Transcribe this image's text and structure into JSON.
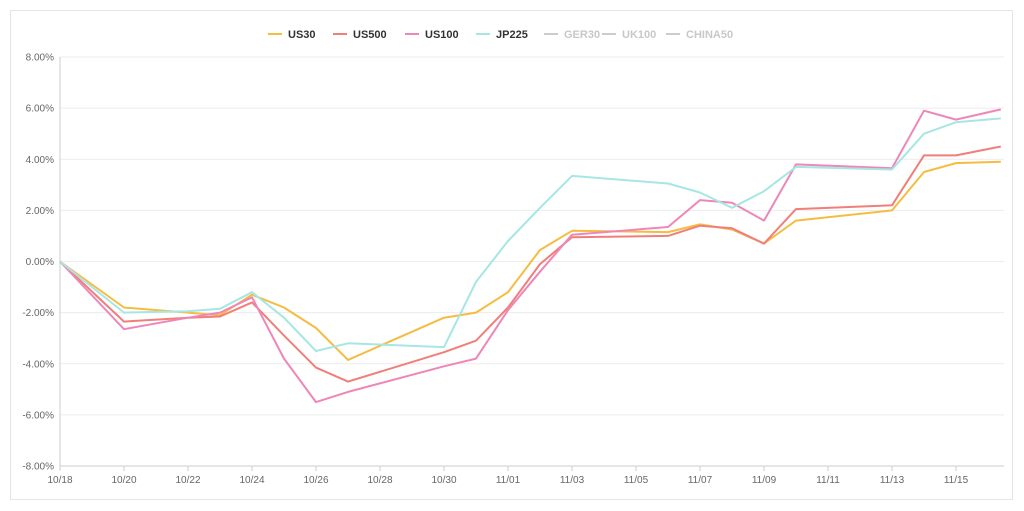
{
  "chart_data": {
    "type": "line",
    "title": "",
    "xlabel": "",
    "ylabel": "",
    "ylim": [
      -8,
      8
    ],
    "y_tick_labels": [
      "8.00%",
      "6.00%",
      "4.00%",
      "2.00%",
      "0.00%",
      "-2.00%",
      "-4.00%",
      "-6.00%",
      "-8.00%"
    ],
    "y_tick_values": [
      8,
      6,
      4,
      2,
      0,
      -2,
      -4,
      -6,
      -8
    ],
    "x_tick_labels": [
      "10/18",
      "10/20",
      "10/22",
      "10/24",
      "10/26",
      "10/28",
      "10/30",
      "11/01",
      "11/03",
      "11/05",
      "11/07",
      "11/09",
      "11/11",
      "11/13",
      "11/15"
    ],
    "x_tick_days": [
      0,
      2,
      4,
      6,
      8,
      10,
      12,
      14,
      16,
      18,
      20,
      22,
      24,
      26,
      28
    ],
    "x_range_days": [
      0,
      29.5
    ],
    "grid": "horizontal",
    "legend_position": "top-center",
    "series": [
      {
        "name": "US30",
        "color": "#f5bc42",
        "visible": true,
        "x": [
          0,
          2,
          4,
          5,
          6,
          7,
          8,
          9,
          12,
          13,
          14,
          15,
          16,
          19,
          20,
          21,
          22,
          23,
          26,
          27,
          28,
          29.4
        ],
        "values": [
          0,
          -1.8,
          -2.0,
          -2.1,
          -1.3,
          -1.8,
          -2.6,
          -3.85,
          -2.2,
          -2.0,
          -1.2,
          0.45,
          1.2,
          1.15,
          1.45,
          1.25,
          0.7,
          1.6,
          2.0,
          3.5,
          3.85,
          3.9
        ]
      },
      {
        "name": "US500",
        "color": "#f07f7a",
        "visible": true,
        "x": [
          0,
          2,
          4,
          5,
          6,
          7,
          8,
          9,
          12,
          13,
          14,
          15,
          16,
          19,
          20,
          21,
          22,
          23,
          26,
          27,
          28,
          29.4
        ],
        "values": [
          0,
          -2.35,
          -2.2,
          -2.15,
          -1.6,
          -2.9,
          -4.15,
          -4.7,
          -3.55,
          -3.1,
          -1.8,
          -0.1,
          0.95,
          1.0,
          1.4,
          1.3,
          0.7,
          2.05,
          2.2,
          4.15,
          4.15,
          4.5
        ]
      },
      {
        "name": "US100",
        "color": "#ef86b8",
        "visible": true,
        "x": [
          0,
          2,
          4,
          5,
          6,
          7,
          8,
          9,
          12,
          13,
          14,
          15,
          16,
          19,
          20,
          21,
          22,
          23,
          26,
          27,
          28,
          29.4
        ],
        "values": [
          0,
          -2.65,
          -2.2,
          -2.0,
          -1.4,
          -3.8,
          -5.5,
          -5.1,
          -4.1,
          -3.8,
          -1.9,
          -0.4,
          1.05,
          1.35,
          2.4,
          2.3,
          1.6,
          3.8,
          3.65,
          5.9,
          5.55,
          5.95
        ]
      },
      {
        "name": "JP225",
        "color": "#a6e6e3",
        "visible": true,
        "x": [
          0,
          2,
          4,
          5,
          6,
          7,
          8,
          9,
          12,
          13,
          14,
          15,
          16,
          19,
          20,
          21,
          22,
          23,
          26,
          27,
          28,
          29.4
        ],
        "values": [
          0,
          -2.0,
          -1.95,
          -1.85,
          -1.2,
          -2.2,
          -3.5,
          -3.2,
          -3.35,
          -0.8,
          0.8,
          2.1,
          3.35,
          3.05,
          2.7,
          2.1,
          2.75,
          3.7,
          3.6,
          5.0,
          5.45,
          5.6
        ]
      },
      {
        "name": "GER30",
        "color": "#cccccc",
        "visible": false,
        "x": [],
        "values": []
      },
      {
        "name": "UK100",
        "color": "#cccccc",
        "visible": false,
        "x": [],
        "values": []
      },
      {
        "name": "CHINA50",
        "color": "#cccccc",
        "visible": false,
        "x": [],
        "values": []
      }
    ]
  }
}
